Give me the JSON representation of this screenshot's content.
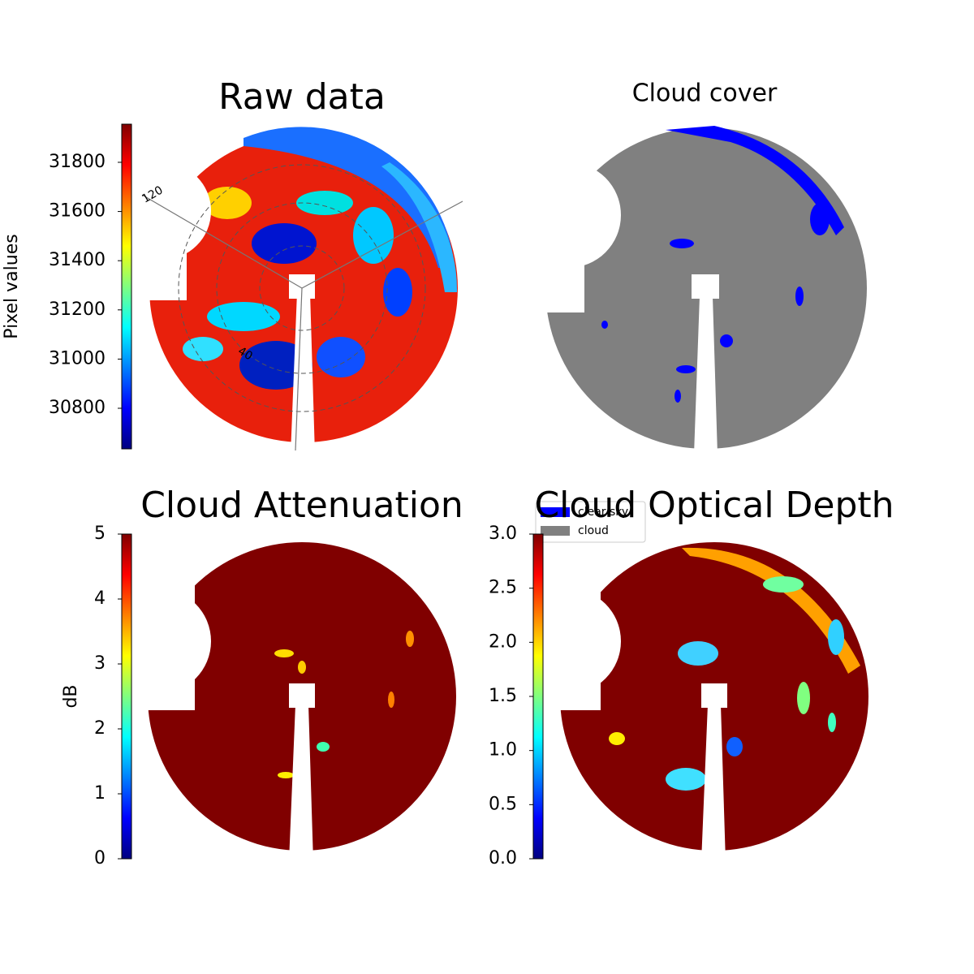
{
  "chart_data": [
    {
      "type": "image",
      "title": "Raw data",
      "colorbar_label": "Pixel values",
      "cmap": "jet",
      "ylim": [
        30635,
        31955
      ],
      "yticks": [
        30800,
        31000,
        31200,
        31400,
        31600,
        31800
      ],
      "annotations": [
        "120",
        "40"
      ]
    },
    {
      "type": "image",
      "title": "Cloud cover",
      "series": [
        {
          "name": "clear sky",
          "color": "#0000ff"
        },
        {
          "name": "cloud",
          "color": "#808080"
        }
      ]
    },
    {
      "type": "image",
      "title": "Cloud Attenuation",
      "colorbar_label": "dB",
      "cmap": "jet",
      "ylim": [
        0,
        5
      ],
      "yticks": [
        0,
        1,
        2,
        3,
        4,
        5
      ]
    },
    {
      "type": "image",
      "title": "Cloud Optical Depth",
      "cmap": "jet",
      "ylim": [
        0,
        3
      ],
      "yticks": [
        {
          "value": 0,
          "label": "0.0"
        },
        {
          "value": 0.5,
          "label": "0.5"
        },
        {
          "value": 1,
          "label": "1.0"
        },
        {
          "value": 1.5,
          "label": "1.5"
        },
        {
          "value": 2,
          "label": "2.0"
        },
        {
          "value": 2.5,
          "label": "2.5"
        },
        {
          "value": 3,
          "label": "3.0"
        }
      ]
    }
  ]
}
